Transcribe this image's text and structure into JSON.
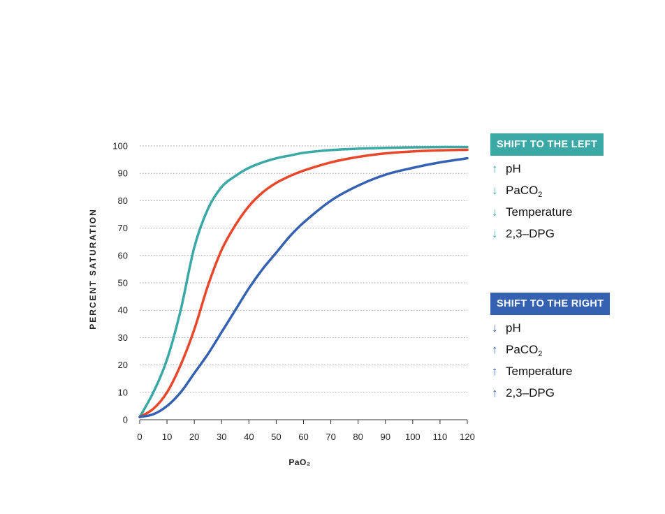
{
  "chart_data": {
    "type": "line",
    "xlabel": "PaO₂",
    "ylabel": "PERCENT SATURATION",
    "xlim": [
      0,
      120
    ],
    "ylim": [
      0,
      100
    ],
    "x_ticks": [
      "0",
      "10",
      "20",
      "30",
      "40",
      "50",
      "60",
      "70",
      "80",
      "90",
      "100",
      "110",
      "120"
    ],
    "y_ticks": [
      "0",
      "10",
      "20",
      "30",
      "40",
      "50",
      "60",
      "70",
      "80",
      "90",
      "100"
    ],
    "grid": "horizontal dotted",
    "x": [
      0,
      5,
      10,
      15,
      20,
      25,
      30,
      35,
      40,
      45,
      50,
      55,
      60,
      70,
      80,
      90,
      100,
      110,
      120
    ],
    "series": [
      {
        "color": "#3aa8a4",
        "values": [
          1,
          10,
          22,
          40,
          63,
          77,
          85,
          89,
          92,
          94,
          95.5,
          96.5,
          97.5,
          98.5,
          99,
          99.3,
          99.5,
          99.6,
          99.6
        ]
      },
      {
        "color": "#e8472a",
        "values": [
          1,
          4,
          10,
          20,
          33,
          49,
          62,
          71,
          78,
          83,
          86.5,
          89,
          91,
          94,
          96,
          97.3,
          98,
          98.4,
          98.6
        ]
      },
      {
        "color": "#3461b2",
        "values": [
          1,
          2,
          5,
          10,
          17,
          24,
          32,
          40,
          48,
          55,
          61,
          67,
          72,
          80,
          85.5,
          89.5,
          92,
          94,
          95.5
        ]
      }
    ]
  },
  "legend": {
    "left": {
      "title": "SHIFT TO THE LEFT",
      "color": "#3aa8a4",
      "items": [
        {
          "arrow": "↑",
          "text": "pH",
          "sub": ""
        },
        {
          "arrow": "↓",
          "text": "PaCO",
          "sub": "2"
        },
        {
          "arrow": "↓",
          "text": "Temperature",
          "sub": ""
        },
        {
          "arrow": "↓",
          "text": "2,3–DPG",
          "sub": ""
        }
      ]
    },
    "right": {
      "title": "SHIFT TO THE RIGHT",
      "color": "#3461b2",
      "items": [
        {
          "arrow": "↓",
          "text": "pH",
          "sub": ""
        },
        {
          "arrow": "↑",
          "text": "PaCO",
          "sub": "2"
        },
        {
          "arrow": "↑",
          "text": "Temperature",
          "sub": ""
        },
        {
          "arrow": "↑",
          "text": "2,3–DPG",
          "sub": ""
        }
      ]
    }
  }
}
